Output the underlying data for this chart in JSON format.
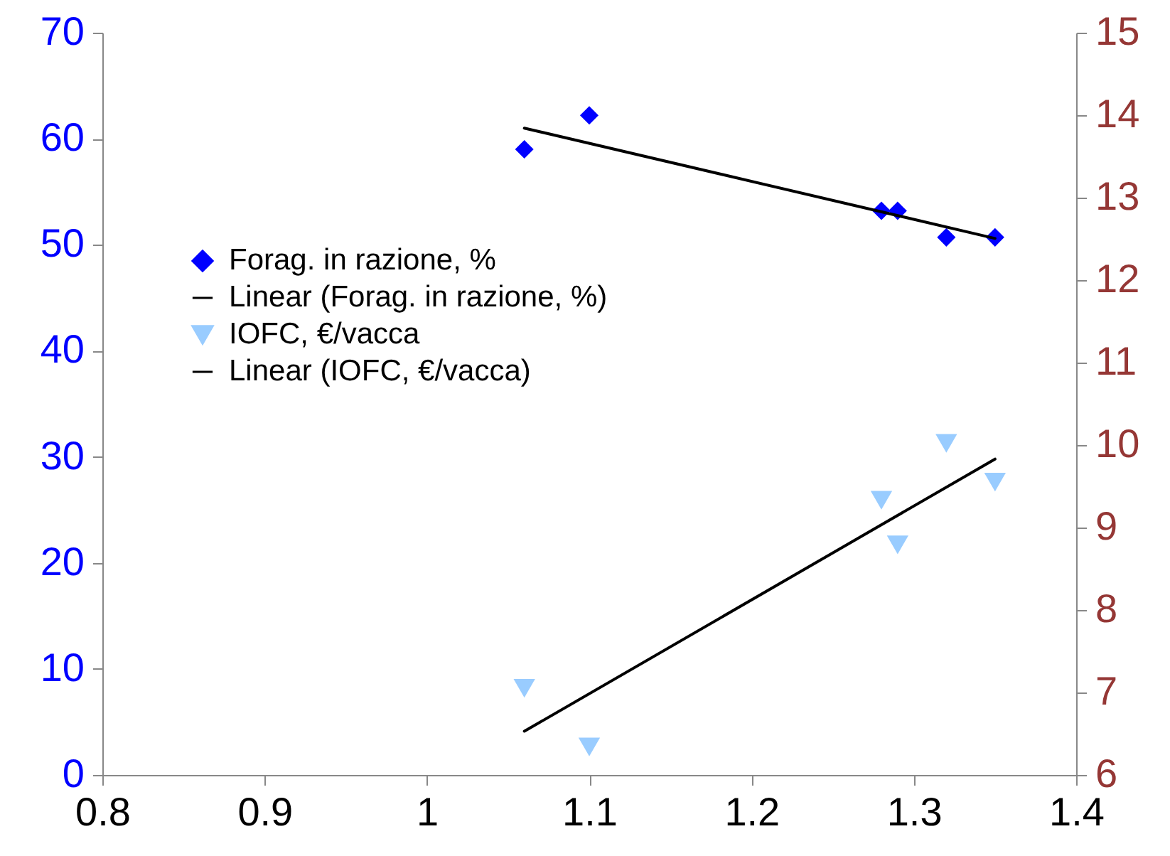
{
  "chart_data": {
    "type": "scatter",
    "xlim": [
      0.8,
      1.4
    ],
    "xticks": [
      0.8,
      0.9,
      1,
      1.1,
      1.2,
      1.3,
      1.4
    ],
    "ylim": [
      0,
      70
    ],
    "yticks": [
      0,
      10,
      20,
      30,
      40,
      50,
      60,
      70
    ],
    "y2lim": [
      6,
      15
    ],
    "y2ticks": [
      6,
      7,
      8,
      9,
      10,
      11,
      12,
      13,
      14,
      15
    ],
    "legend": "left",
    "grid": false,
    "series": [
      {
        "name": "Forag. in razione, %",
        "marker": "diamond",
        "color": "#0000ff",
        "x": [
          1.06,
          1.1,
          1.28,
          1.29,
          1.32,
          1.35
        ],
        "values": [
          59.0,
          62.2,
          53.2,
          53.2,
          50.7,
          50.7
        ]
      },
      {
        "name": "Linear (Forag. in razione, %)",
        "type": "line",
        "color": "#000000",
        "x": [
          1.06,
          1.35
        ],
        "values": [
          61.0,
          50.6
        ]
      },
      {
        "name": "IOFC, €/vacca",
        "marker": "triangle",
        "axis": "y2",
        "color": "#99ccff",
        "x": [
          1.06,
          1.1,
          1.28,
          1.29,
          1.32,
          1.35
        ],
        "values": [
          7.05,
          6.34,
          9.33,
          8.79,
          10.02,
          9.55
        ]
      },
      {
        "name": "Linear (IOFC, €/vacca)",
        "type": "line",
        "axis": "y2",
        "color": "#000000",
        "x": [
          1.06,
          1.35
        ],
        "values": [
          6.53,
          9.83
        ]
      }
    ]
  }
}
